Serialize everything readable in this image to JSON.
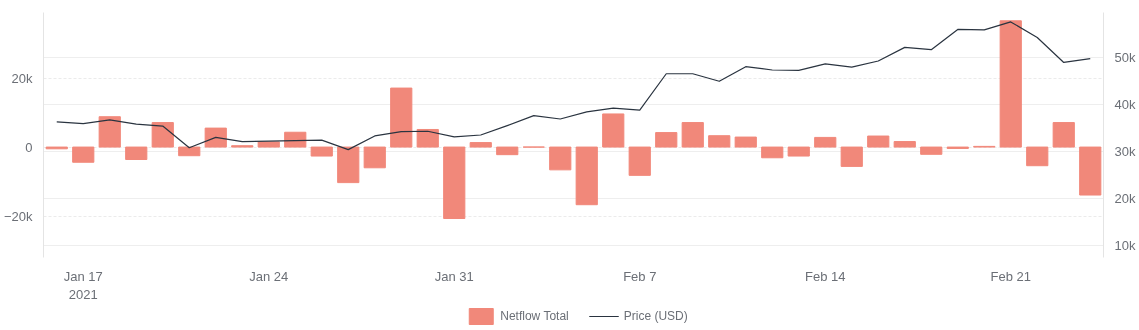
{
  "chart_data": {
    "type": "bar",
    "x": [
      "2021-01-16",
      "2021-01-17",
      "2021-01-18",
      "2021-01-19",
      "2021-01-20",
      "2021-01-21",
      "2021-01-22",
      "2021-01-23",
      "2021-01-24",
      "2021-01-25",
      "2021-01-26",
      "2021-01-27",
      "2021-01-28",
      "2021-01-29",
      "2021-01-30",
      "2021-01-31",
      "2021-02-01",
      "2021-02-02",
      "2021-02-03",
      "2021-02-04",
      "2021-02-05",
      "2021-02-06",
      "2021-02-07",
      "2021-02-08",
      "2021-02-09",
      "2021-02-10",
      "2021-02-11",
      "2021-02-12",
      "2021-02-13",
      "2021-02-14",
      "2021-02-15",
      "2021-02-16",
      "2021-02-17",
      "2021-02-18",
      "2021-02-19",
      "2021-02-20",
      "2021-02-21",
      "2021-02-22",
      "2021-02-23",
      "2021-02-24"
    ],
    "series": [
      {
        "name": "Netflow Total",
        "color": "#f1887a",
        "values": [
          -500,
          -4400,
          8800,
          -3600,
          7100,
          -2500,
          5500,
          400,
          1500,
          4300,
          -2600,
          -10300,
          -6000,
          17100,
          5100,
          -20700,
          1300,
          -2200,
          0,
          -6600,
          -16700,
          9600,
          -8200,
          4200,
          7100,
          3300,
          2900,
          -3100,
          -2600,
          2800,
          -5600,
          3200,
          1600,
          -2100,
          -400,
          200,
          36600,
          -5400,
          7100,
          -13900
        ]
      },
      {
        "name": "Price (USD)",
        "type": "line",
        "color": "#2a3440",
        "axis": "y2",
        "values": [
          36300,
          35900,
          36700,
          35800,
          35400,
          30800,
          33000,
          32100,
          32200,
          32300,
          32400,
          30400,
          33300,
          34200,
          34300,
          33100,
          33500,
          35500,
          37600,
          36900,
          38400,
          39200,
          38800,
          46500,
          46500,
          44900,
          48000,
          47300,
          47200,
          48600,
          47900,
          49200,
          52100,
          51600,
          55900,
          55800,
          57500,
          54200,
          48900,
          49700
        ]
      }
    ],
    "xlim": [
      "2021-01-15T12:00",
      "2021-02-24T12:00"
    ],
    "xticks": [
      {
        "value": "2021-01-17",
        "label": "Jan 17\n2021"
      },
      {
        "value": "2021-01-24",
        "label": "Jan 24"
      },
      {
        "value": "2021-01-31",
        "label": "Jan 31"
      },
      {
        "value": "2021-02-07",
        "label": "Feb 7"
      },
      {
        "value": "2021-02-14",
        "label": "Feb 14"
      },
      {
        "value": "2021-02-21",
        "label": "Feb 21"
      }
    ],
    "ylim": [
      -32000,
      39000
    ],
    "yticks": [
      {
        "value": -20000,
        "label": "−20k"
      },
      {
        "value": 0,
        "label": "0"
      },
      {
        "value": 20000,
        "label": "20k"
      }
    ],
    "y2lim": [
      7500,
      59500
    ],
    "y2ticks": [
      {
        "value": 10000,
        "label": "10k"
      },
      {
        "value": 20000,
        "label": "20k"
      },
      {
        "value": 30000,
        "label": "30k"
      },
      {
        "value": 40000,
        "label": "40k"
      },
      {
        "value": 50000,
        "label": "50k"
      }
    ],
    "grid": true,
    "legend": "bottom"
  }
}
